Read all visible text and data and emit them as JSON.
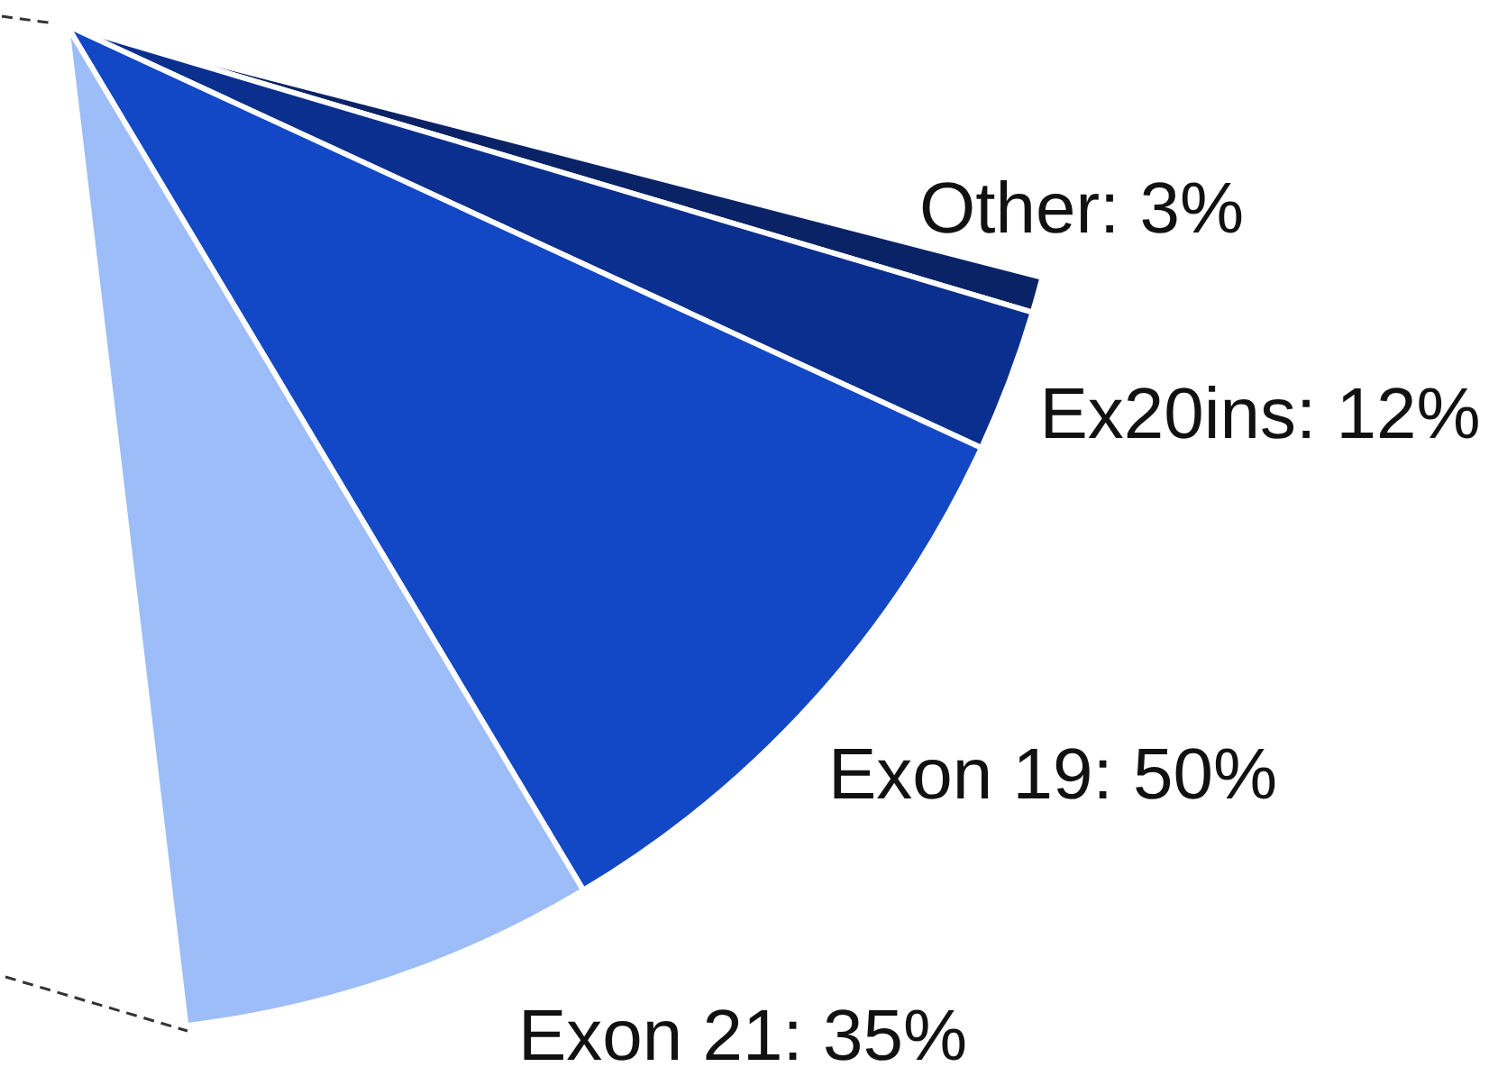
{
  "chart_data": {
    "type": "pie",
    "categories": [
      "Other",
      "Ex20ins",
      "Exon 19",
      "Exon 21"
    ],
    "values": [
      3,
      12,
      50,
      35
    ],
    "colors": [
      "#0a2366",
      "#0b2f8f",
      "#1247c6",
      "#9dbdf8"
    ],
    "value_labels": [
      "3%",
      "12%",
      "50%",
      "35%"
    ]
  }
}
